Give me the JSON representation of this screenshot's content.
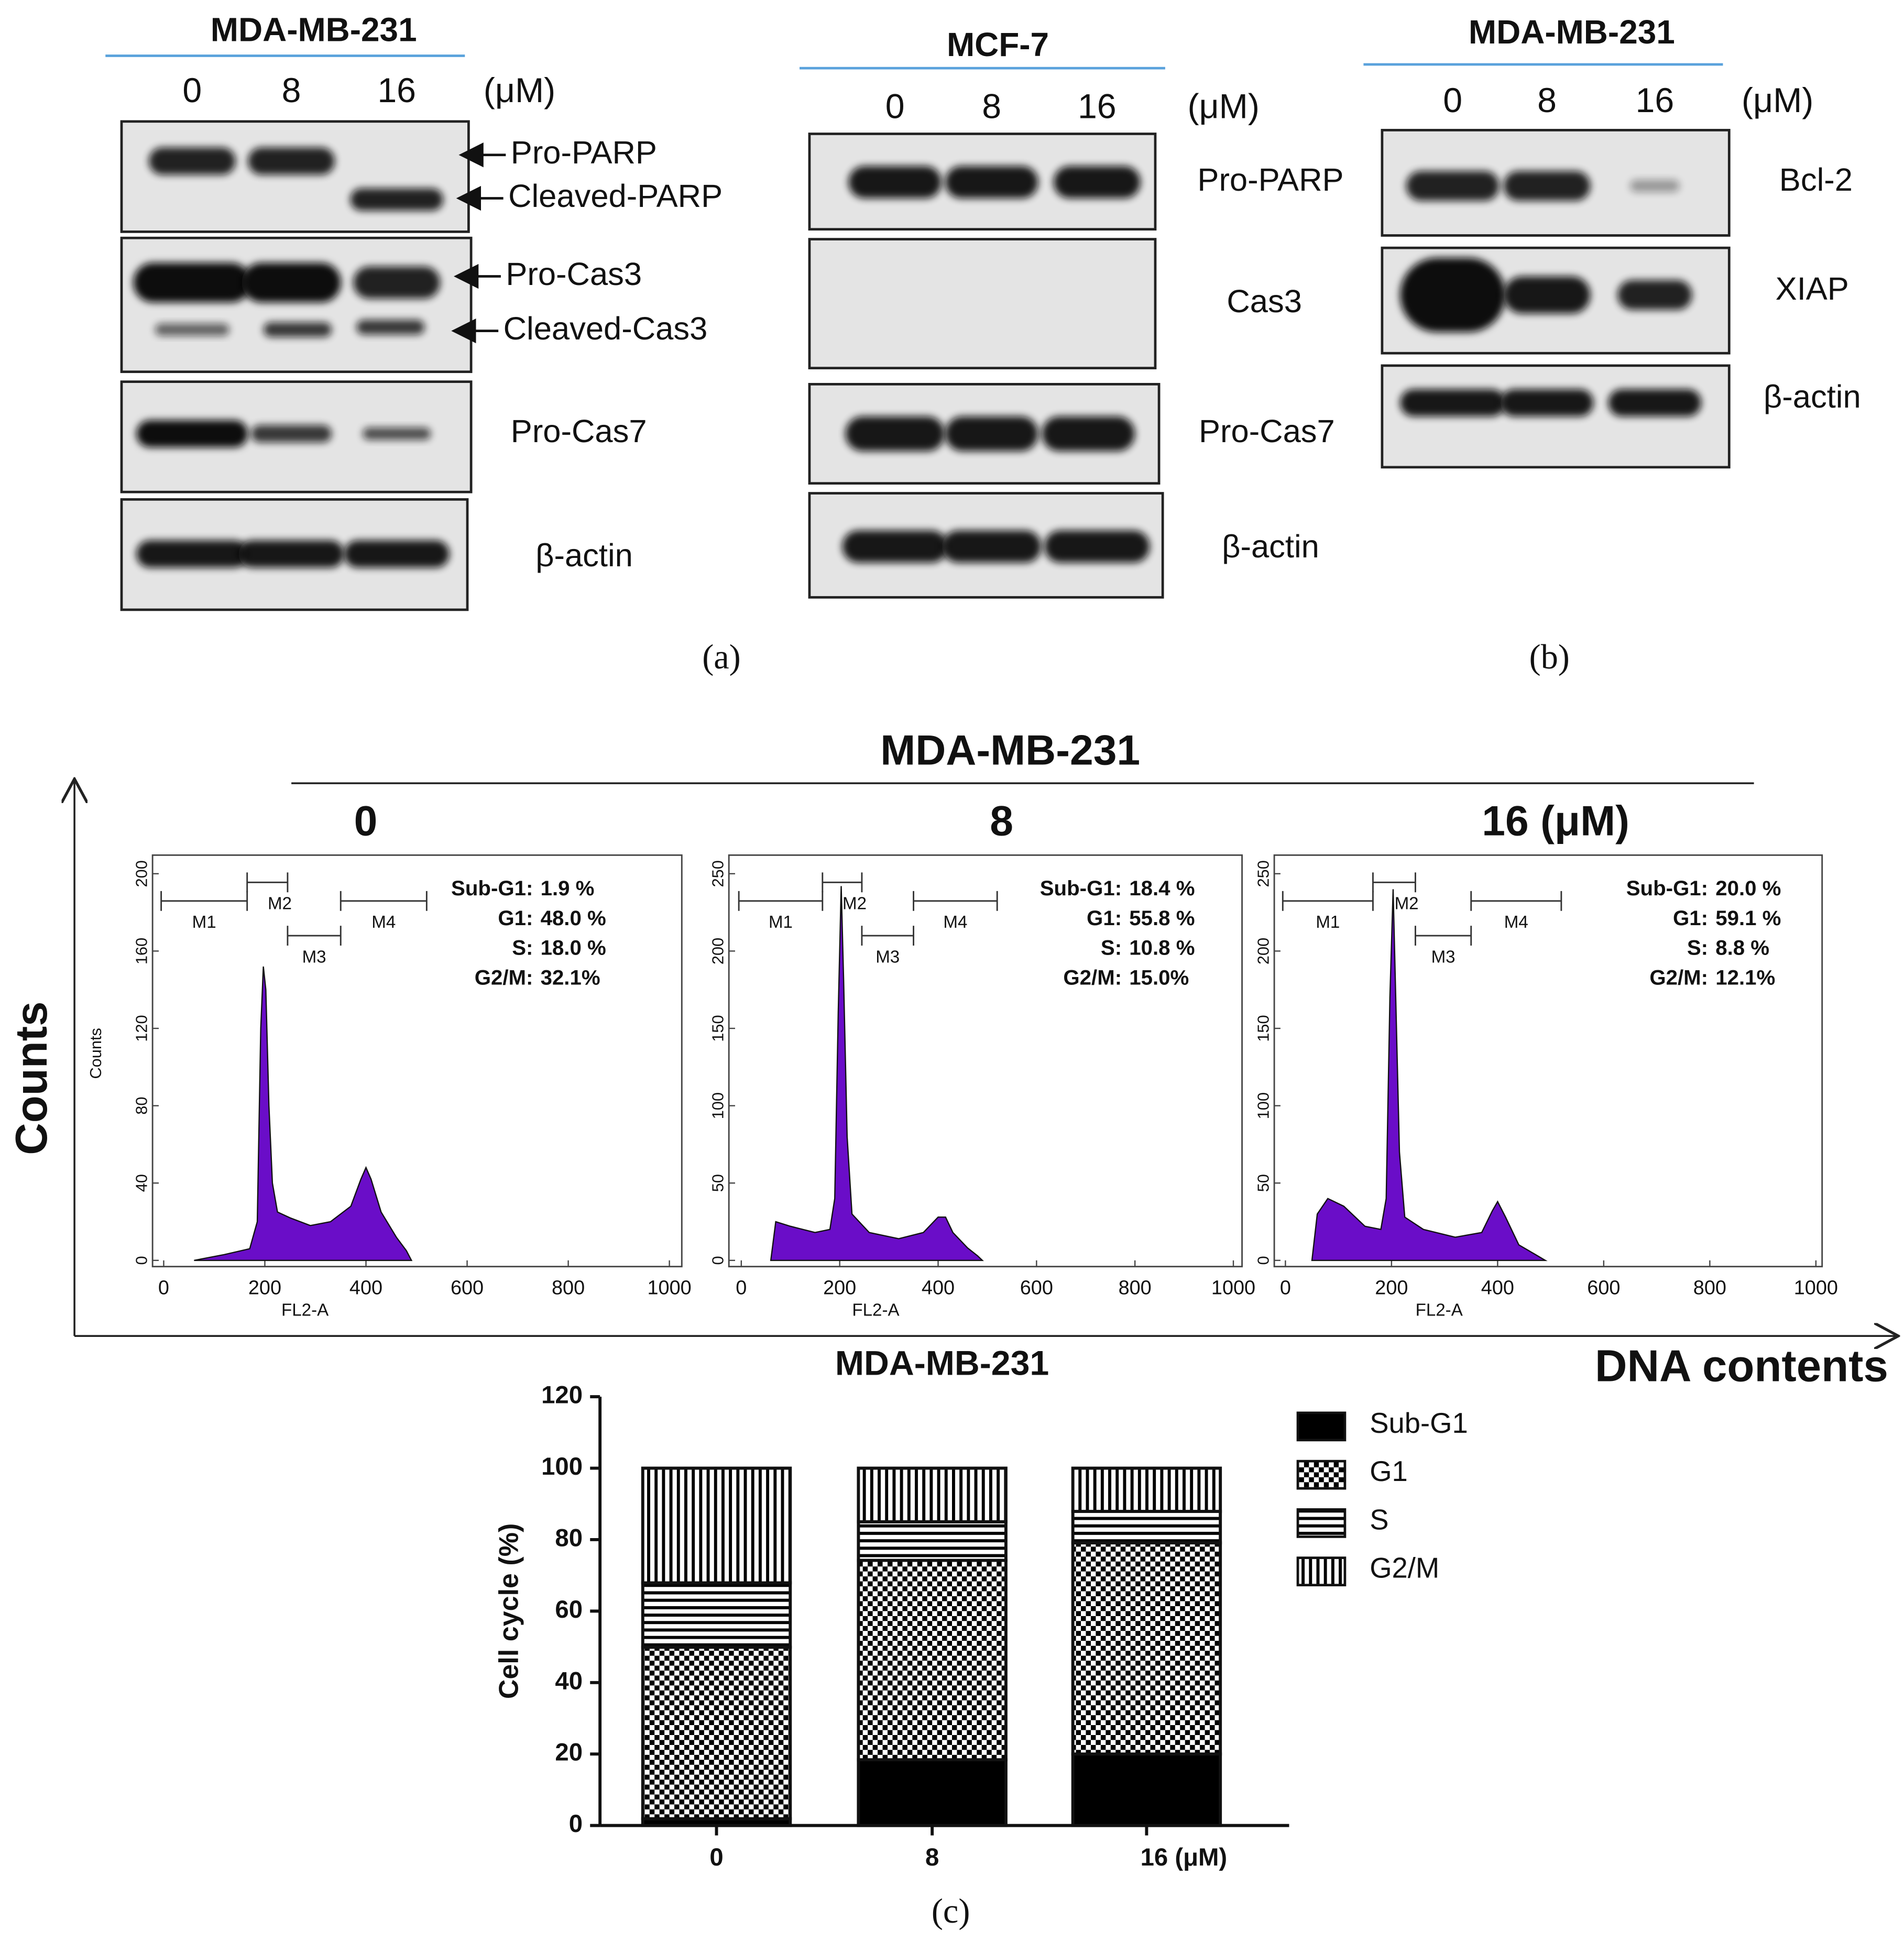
{
  "panel_a": {
    "caption": "(a)",
    "blots": [
      {
        "title": "MDA-MB-231",
        "lanes": [
          "0",
          "8",
          "16"
        ],
        "unit": "(μM)",
        "labels": [
          "Pro-PARP",
          "Cleaved-PARP",
          "Pro-Cas3",
          "Cleaved-Cas3",
          "Pro-Cas7",
          "β-actin"
        ]
      },
      {
        "title": "MCF-7",
        "lanes": [
          "0",
          "8",
          "16"
        ],
        "unit": "(μM)",
        "labels": [
          "Pro-PARP",
          "Cas3",
          "Pro-Cas7",
          "β-actin"
        ]
      }
    ]
  },
  "panel_b": {
    "caption": "(b)",
    "blots": [
      {
        "title": "MDA-MB-231",
        "lanes": [
          "0",
          "8",
          "16"
        ],
        "unit": "(μM)",
        "labels": [
          "Bcl-2",
          "XIAP",
          "β-actin"
        ]
      }
    ]
  },
  "panel_c": {
    "title": "MDA-MB-231",
    "y_label": "Counts",
    "x_label": "DNA contents",
    "caption": "(c)"
  },
  "chart_data": [
    {
      "type": "area",
      "title": "0",
      "x_label": "FL2-A",
      "y_label": "Counts",
      "color": "#6a0dc8",
      "markers": [
        "M1",
        "M2",
        "M3",
        "M4"
      ],
      "stats": [
        {
          "name": "Sub-G1:",
          "value": "1.9 %"
        },
        {
          "name": "G1:",
          "value": "48.0 %"
        },
        {
          "name": "S:",
          "value": "18.0 %"
        },
        {
          "name": "G2/M:",
          "value": "32.1%"
        }
      ],
      "xlim": [
        0,
        1000
      ],
      "xticks": [
        0,
        200,
        400,
        600,
        800,
        1000
      ],
      "ylim": [
        0,
        200
      ],
      "yticks": [
        0,
        40,
        80,
        120,
        160,
        200
      ],
      "x": [
        60,
        120,
        170,
        185,
        192,
        197,
        202,
        208,
        215,
        225,
        250,
        290,
        330,
        370,
        390,
        400,
        410,
        430,
        460,
        480,
        490
      ],
      "values": [
        0,
        3,
        6,
        20,
        120,
        152,
        140,
        80,
        40,
        25,
        22,
        18,
        20,
        28,
        42,
        48,
        42,
        25,
        12,
        5,
        0
      ]
    },
    {
      "type": "area",
      "title": "8",
      "x_label": "FL2-A",
      "color": "#6a0dc8",
      "markers": [
        "M1",
        "M2",
        "M3",
        "M4"
      ],
      "stats": [
        {
          "name": "Sub-G1:",
          "value": "18.4 %"
        },
        {
          "name": "G1:",
          "value": "55.8 %"
        },
        {
          "name": "S:",
          "value": "10.8 %"
        },
        {
          "name": "G2/M:",
          "value": "15.0%"
        }
      ],
      "xlim": [
        0,
        1000
      ],
      "xticks": [
        0,
        200,
        400,
        600,
        800,
        1000
      ],
      "ylim": [
        0,
        250
      ],
      "yticks": [
        0,
        50,
        100,
        150,
        200,
        250
      ],
      "x": [
        60,
        70,
        100,
        150,
        180,
        190,
        197,
        203,
        208,
        215,
        225,
        260,
        320,
        370,
        400,
        415,
        430,
        460,
        480,
        490
      ],
      "values": [
        0,
        25,
        22,
        18,
        20,
        40,
        160,
        242,
        180,
        80,
        30,
        18,
        14,
        18,
        28,
        28,
        18,
        8,
        3,
        0
      ]
    },
    {
      "type": "area",
      "title": "16 (μM)",
      "x_label": "FL2-A",
      "color": "#6a0dc8",
      "markers": [
        "M1",
        "M2",
        "M3",
        "M4"
      ],
      "stats": [
        {
          "name": "Sub-G1:",
          "value": "20.0 %"
        },
        {
          "name": "G1:",
          "value": "59.1 %"
        },
        {
          "name": "S:",
          "value": "8.8 %"
        },
        {
          "name": "G2/M:",
          "value": "12.1%"
        }
      ],
      "xlim": [
        0,
        1000
      ],
      "xticks": [
        0,
        200,
        400,
        600,
        800,
        1000
      ],
      "ylim": [
        0,
        250
      ],
      "yticks": [
        0,
        50,
        100,
        150,
        200,
        250
      ],
      "x": [
        50,
        60,
        80,
        110,
        150,
        180,
        190,
        197,
        203,
        208,
        215,
        225,
        260,
        320,
        370,
        390,
        400,
        415,
        440,
        470,
        490
      ],
      "values": [
        0,
        30,
        40,
        35,
        22,
        20,
        40,
        170,
        240,
        170,
        70,
        28,
        20,
        15,
        18,
        32,
        38,
        28,
        10,
        4,
        0
      ]
    },
    {
      "type": "stacked_bar",
      "title": "MDA-MB-231",
      "y_label": "Cell cycle (%)",
      "categories": [
        "0",
        "8",
        "16 (μM)"
      ],
      "ylim": [
        0,
        120
      ],
      "yticks": [
        0,
        20,
        40,
        60,
        80,
        100,
        120
      ],
      "legend": "right",
      "series": [
        {
          "name": "Sub-G1",
          "pattern": "solid",
          "color": "#000000",
          "values": [
            1.9,
            18.4,
            20.0
          ]
        },
        {
          "name": "G1",
          "pattern": "checker",
          "color": "#000000",
          "values": [
            48.0,
            55.8,
            59.1
          ]
        },
        {
          "name": "S",
          "pattern": "hlines",
          "color": "#000000",
          "values": [
            18.0,
            10.8,
            8.8
          ]
        },
        {
          "name": "G2/M",
          "pattern": "vlines",
          "color": "#000000",
          "values": [
            32.1,
            15.0,
            12.1
          ]
        }
      ]
    }
  ]
}
